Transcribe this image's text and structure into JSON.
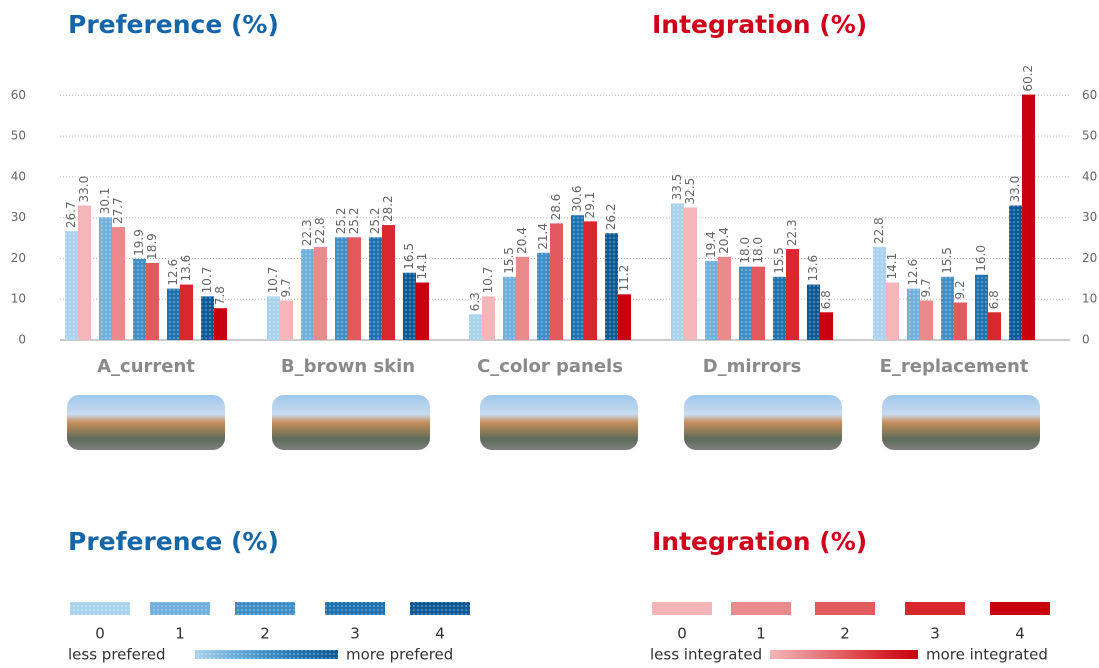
{
  "chart_data": {
    "type": "bar",
    "categories": [
      "A_current",
      "B_brown skin",
      "C_color panels",
      "D_mirrors",
      "E_replacement"
    ],
    "ylim": [
      0,
      65
    ],
    "yticks": [
      0,
      10,
      20,
      30,
      40,
      50,
      60
    ],
    "grid": true,
    "preference": {
      "title": "Preference (%)",
      "legend_low": "less prefered",
      "legend_high": "more prefered",
      "series": [
        {
          "name": "0",
          "color": "#a9d3ec",
          "values": [
            26.7,
            10.7,
            6.3,
            33.5,
            22.8
          ],
          "value_labels": [
            "26.7",
            "10.7",
            "6.3",
            "33.5",
            "22.8"
          ]
        },
        {
          "name": "1",
          "color": "#6fb0dc",
          "values": [
            30.1,
            22.3,
            15.5,
            19.4,
            12.6
          ],
          "value_labels": [
            "30.1",
            "22.3",
            "15.5",
            "19.4",
            "12.6"
          ]
        },
        {
          "name": "2",
          "color": "#3f8fc6",
          "values": [
            19.9,
            25.2,
            21.4,
            18.0,
            15.5
          ],
          "value_labels": [
            "19.9",
            "25.2",
            "21.4",
            "18.0",
            "15.5"
          ]
        },
        {
          "name": "3",
          "color": "#1f72b0",
          "values": [
            12.6,
            25.2,
            30.6,
            15.5,
            16.0
          ],
          "value_labels": [
            "12.6",
            "25.2",
            "30.6",
            "15.5",
            "16.0"
          ]
        },
        {
          "name": "4",
          "color": "#0d5a97",
          "values": [
            10.7,
            16.5,
            26.2,
            13.6,
            33.0
          ],
          "value_labels": [
            "10.7",
            "16.5",
            "26.2",
            "13.6",
            "33.0"
          ]
        }
      ]
    },
    "integration": {
      "title": "Integration (%)",
      "legend_low": "less integrated",
      "legend_high": "more integrated",
      "series": [
        {
          "name": "0",
          "color": "#f4b6b8",
          "values": [
            33.0,
            9.7,
            10.7,
            32.5,
            14.1
          ],
          "value_labels": [
            "33.0",
            "9.7",
            "10.7",
            "32.5",
            "14.1"
          ]
        },
        {
          "name": "1",
          "color": "#e98a8d",
          "values": [
            27.7,
            22.8,
            20.4,
            20.4,
            9.7
          ],
          "value_labels": [
            "27.7",
            "22.8",
            "20.4",
            "20.4",
            "9.7"
          ]
        },
        {
          "name": "2",
          "color": "#e05a5e",
          "values": [
            18.9,
            25.2,
            28.6,
            18.0,
            9.2
          ],
          "value_labels": [
            "18.9",
            "25.2",
            "28.6",
            "18.0",
            "9.2"
          ]
        },
        {
          "name": "3",
          "color": "#d7282e",
          "values": [
            13.6,
            28.2,
            29.1,
            22.3,
            6.8
          ],
          "value_labels": [
            "13.6",
            "28.2",
            "29.1",
            "22.3",
            "6.8"
          ]
        },
        {
          "name": "4",
          "color": "#c8000f",
          "values": [
            7.8,
            14.1,
            11.2,
            6.8,
            60.2
          ],
          "value_labels": [
            "7.8",
            "14.1",
            "11.2",
            "6.8",
            "60.2"
          ]
        }
      ]
    }
  }
}
